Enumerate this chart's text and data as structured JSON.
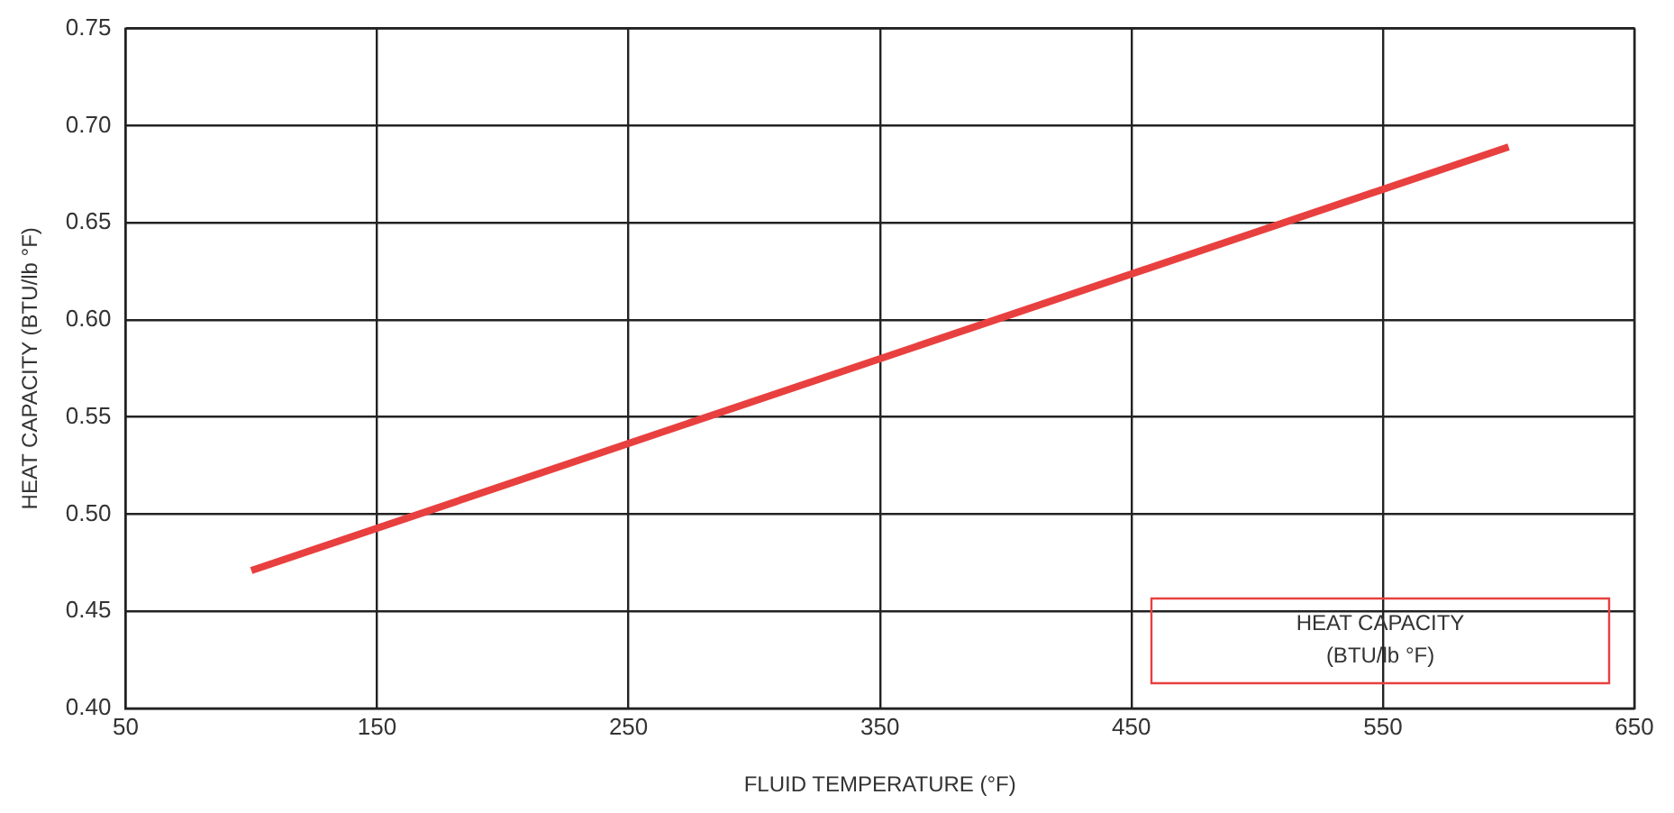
{
  "chart_data": {
    "type": "line",
    "xlabel": "FLUID TEMPERATURE (°F)",
    "ylabel": "HEAT CAPACITY (BTU/lb °F)",
    "x": [
      100,
      600
    ],
    "series": [
      {
        "name": "HEAT CAPACITY (BTU/lb °F)",
        "color": "#e8403f",
        "values": [
          0.471,
          0.689
        ]
      }
    ],
    "xlim": [
      50,
      650
    ],
    "xticks": [
      50,
      150,
      250,
      350,
      450,
      550,
      650
    ],
    "ylim": [
      0.4,
      0.75
    ],
    "yticks": [
      {
        "value": 0.4,
        "label": "0.40"
      },
      {
        "value": 0.45,
        "label": "0.45"
      },
      {
        "value": 0.5,
        "label": "0.50"
      },
      {
        "value": 0.55,
        "label": "0.55"
      },
      {
        "value": 0.6,
        "label": "0.60"
      },
      {
        "value": 0.65,
        "label": "0.65"
      },
      {
        "value": 0.7,
        "label": "0.70"
      },
      {
        "value": 0.75,
        "label": "0.75"
      }
    ],
    "grid": true,
    "legend": "bottom right",
    "marker": "none",
    "line_style": "solid"
  }
}
